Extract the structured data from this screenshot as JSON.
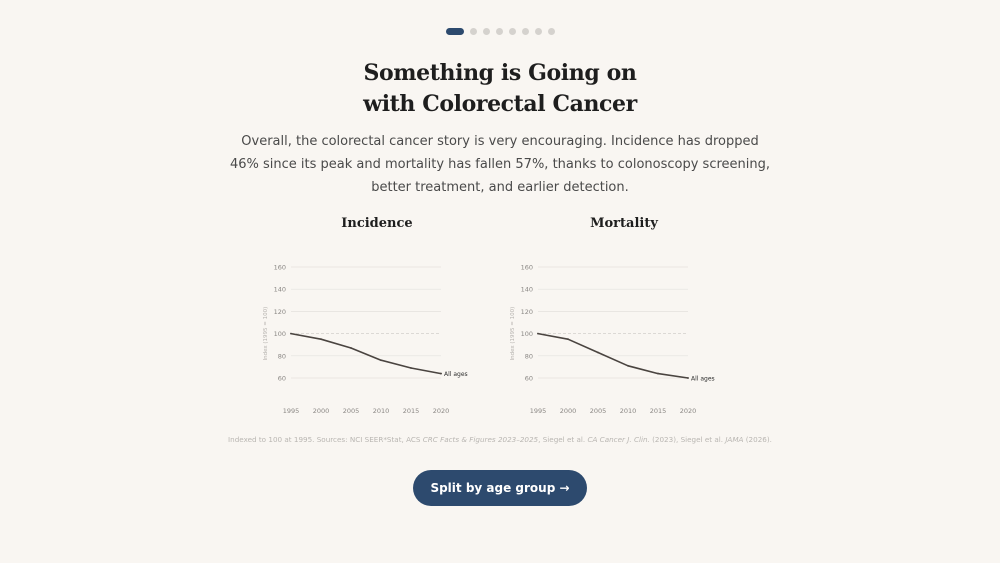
{
  "pager": {
    "count": 8,
    "active_index": 0
  },
  "title": {
    "line1": "Something is Going on",
    "line2": "with Colorectal Cancer"
  },
  "lede": "Overall, the colorectal cancer story is very encouraging. Incidence has dropped 46% since its peak and mortality has fallen 57%, thanks to colonoscopy screening, better treatment, and earlier detection.",
  "source": {
    "part1": "Indexed to 100 at 1995. Sources: NCI SEER*Stat, ACS ",
    "italic1": "CRC Facts & Figures 2023–2025",
    "part2": ", Siegel et al. ",
    "italic2": "CA Cancer J. Clin.",
    "part3": " (2023), Siegel et al. ",
    "italic3": "JAMA",
    "part4": " (2026)."
  },
  "cta": {
    "label": "Split by age group →"
  },
  "colors": {
    "accent": "#2d4a6e",
    "background": "#f9f6f2",
    "line": "#4a4440",
    "grid": "#e4e1dd"
  },
  "chart_data": [
    {
      "type": "line",
      "title": "Incidence",
      "xlabel": "",
      "ylabel": "Index (1995 = 100)",
      "x_ticks": [
        "1995",
        "2000",
        "2005",
        "2010",
        "2015",
        "2020"
      ],
      "y_ticks": [
        "160",
        "140",
        "120",
        "100",
        "80",
        "60"
      ],
      "xlim": [
        1995,
        2020
      ],
      "ylim": [
        50,
        160
      ],
      "reference_line": 100,
      "grid": true,
      "series": [
        {
          "name": "All ages",
          "x": [
            1995,
            2000,
            2005,
            2010,
            2015,
            2020
          ],
          "y": [
            100,
            95,
            87,
            76,
            69,
            64
          ]
        }
      ]
    },
    {
      "type": "line",
      "title": "Mortality",
      "xlabel": "",
      "ylabel": "Index (1995 = 100)",
      "x_ticks": [
        "1995",
        "2000",
        "2005",
        "2010",
        "2015",
        "2020"
      ],
      "y_ticks": [
        "160",
        "140",
        "120",
        "100",
        "80",
        "60"
      ],
      "xlim": [
        1995,
        2020
      ],
      "ylim": [
        50,
        160
      ],
      "reference_line": 100,
      "grid": true,
      "series": [
        {
          "name": "All ages",
          "x": [
            1995,
            2000,
            2005,
            2010,
            2015,
            2020
          ],
          "y": [
            100,
            95,
            83,
            71,
            64,
            60
          ]
        }
      ]
    }
  ]
}
